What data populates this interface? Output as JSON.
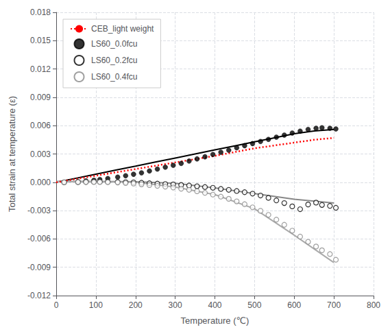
{
  "chart_data": {
    "type": "scatter",
    "xlabel": "Temperature (℃)",
    "ylabel": "Total strain at temperature (ε)",
    "xlim": [
      0,
      800
    ],
    "ylim": [
      -0.012,
      0.018
    ],
    "xticks": [
      0,
      100,
      200,
      300,
      400,
      500,
      600,
      700,
      800
    ],
    "yticks": [
      -0.012,
      -0.009,
      -0.006,
      -0.003,
      {
        "value": 0,
        "label": "0.000"
      },
      0.003,
      0.006,
      0.009,
      0.012,
      0.015,
      0.018
    ],
    "grid": true,
    "legend": "upper left",
    "series": [
      {
        "type": "line",
        "color": "#000000",
        "line_style": "solid",
        "x": [
          0,
          50,
          100,
          150,
          200,
          250,
          300,
          350,
          400,
          450,
          500,
          550,
          600,
          650,
          700
        ],
        "values": [
          0.0,
          0.00043,
          0.00086,
          0.00129,
          0.00171,
          0.00214,
          0.00257,
          0.003,
          0.00343,
          0.00386,
          0.00429,
          0.00471,
          0.00514,
          0.00543,
          0.0056
        ]
      },
      {
        "type": "line",
        "color": "#888888",
        "line_style": "solid",
        "x": [
          0,
          100,
          200,
          300,
          400,
          500,
          600,
          700
        ],
        "values": [
          0.0001,
          0.0001,
          5e-05,
          -0.0001,
          -0.0006,
          -0.0012,
          -0.0018,
          -0.0022
        ]
      },
      {
        "type": "line",
        "color": "#aaaaaa",
        "line_style": "solid",
        "x": [
          0,
          100,
          200,
          300,
          400,
          500,
          600,
          700
        ],
        "values": [
          5e-05,
          5e-05,
          0.0,
          -0.0005,
          -0.0013,
          -0.0028,
          -0.0056,
          -0.0085
        ]
      },
      {
        "name": "CEB_light weight",
        "type": "line",
        "color": "#ff0000",
        "line_style": "dotted",
        "x": [
          0,
          100,
          200,
          300,
          400,
          500,
          550,
          600,
          650,
          700
        ],
        "values": [
          0.0,
          0.0007,
          0.0014,
          0.0021,
          0.0028,
          0.0036,
          0.0039,
          0.0042,
          0.0045,
          0.0047
        ]
      },
      {
        "name": "LS60_0.0fcu",
        "type": "scatter",
        "color": "#000000",
        "marker": "circle",
        "x": [
          20,
          55,
          75,
          95,
          110,
          130,
          155,
          175,
          195,
          215,
          235,
          255,
          275,
          295,
          315,
          335,
          355,
          375,
          395,
          415,
          435,
          455,
          475,
          495,
          515,
          535,
          555,
          575,
          595,
          615,
          635,
          655,
          670,
          690,
          705
        ],
        "values": [
          0.0,
          8e-05,
          0.00015,
          0.00022,
          0.0003,
          0.0004,
          0.00055,
          0.0007,
          0.00085,
          0.001,
          0.0012,
          0.0014,
          0.0016,
          0.0018,
          0.002,
          0.00225,
          0.00248,
          0.0027,
          0.00295,
          0.00318,
          0.0034,
          0.00365,
          0.00388,
          0.0041,
          0.00432,
          0.00455,
          0.00478,
          0.005,
          0.00522,
          0.00542,
          0.0056,
          0.00572,
          0.00578,
          0.00572,
          0.00565
        ]
      },
      {
        "name": "LS60_0.2fcu",
        "type": "scatter",
        "color": "#000000",
        "marker": "open_circle",
        "x": [
          20,
          55,
          75,
          95,
          110,
          130,
          155,
          175,
          195,
          215,
          235,
          255,
          275,
          295,
          315,
          335,
          355,
          375,
          395,
          415,
          435,
          455,
          475,
          495,
          515,
          535,
          555,
          575,
          595,
          615,
          635,
          655,
          670,
          690,
          705
        ],
        "values": [
          0.0,
          2e-05,
          4e-05,
          6e-05,
          6e-05,
          6e-05,
          4e-05,
          2e-05,
          0.0,
          -5e-05,
          -0.0001,
          -0.00014,
          -0.00018,
          -0.00022,
          -0.00028,
          -0.00034,
          -0.00042,
          -0.0005,
          -0.00058,
          -0.0007,
          -0.0008,
          -0.00092,
          -0.00105,
          -0.0012,
          -0.0014,
          -0.00165,
          -0.00192,
          -0.0022,
          -0.00255,
          -0.00285,
          -0.00235,
          -0.00215,
          -0.0024,
          -0.0025,
          -0.0027
        ]
      },
      {
        "name": "LS60_0.4fcu",
        "type": "scatter",
        "color": "#888888",
        "marker": "open_circle",
        "x": [
          20,
          55,
          75,
          95,
          110,
          130,
          155,
          175,
          195,
          215,
          235,
          255,
          275,
          295,
          315,
          335,
          355,
          375,
          395,
          415,
          435,
          455,
          475,
          495,
          515,
          535,
          555,
          575,
          595,
          615,
          635,
          655,
          670,
          690,
          705
        ],
        "values": [
          0.0,
          2e-05,
          2e-05,
          2e-05,
          2e-05,
          0.0,
          -2e-05,
          -8e-05,
          -0.00014,
          -0.00022,
          -0.0003,
          -0.00038,
          -0.00046,
          -0.00055,
          -0.00068,
          -0.0008,
          -0.00095,
          -0.00112,
          -0.0013,
          -0.00152,
          -0.00175,
          -0.00202,
          -0.00232,
          -0.00265,
          -0.00302,
          -0.00345,
          -0.00395,
          -0.0045,
          -0.00512,
          -0.00575,
          -0.0063,
          -0.0068,
          -0.0072,
          -0.0076,
          -0.0082
        ]
      }
    ]
  }
}
